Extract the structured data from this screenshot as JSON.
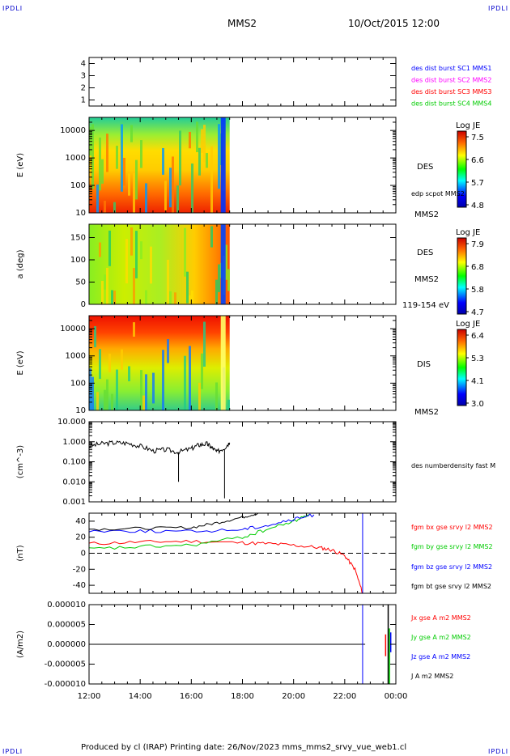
{
  "header": {
    "corner_label": "IPDLI",
    "spacecraft": "MMS2",
    "datetime": "10/Oct/2015 12:00"
  },
  "footer": {
    "text": "Produced by cl (IRAP)   Printing date: 26/Nov/2023   mms_mms2_srvy_vue_web1.cl"
  },
  "time_axis": {
    "labels": [
      "12:00",
      "14:00",
      "16:00",
      "18:00",
      "20:00",
      "22:00",
      "00:00"
    ]
  },
  "colors": {
    "blue": "#0000ff",
    "magenta": "#ff00ff",
    "red": "#ff0000",
    "green": "#00cc00",
    "black": "#000000"
  },
  "chart_data": [
    {
      "type": "line",
      "panel": "burst-coverage",
      "ylim": [
        0.5,
        4.5
      ],
      "yticks": [
        "1",
        "2",
        "3",
        "4"
      ],
      "legend": [
        {
          "label": "des dist burst SC1 MMS1",
          "color": "#0000ff"
        },
        {
          "label": "des dist burst SC2 MMS2",
          "color": "#ff00ff"
        },
        {
          "label": "des dist burst SC3 MMS3",
          "color": "#ff0000"
        },
        {
          "label": "des dist burst SC4 MMS4",
          "color": "#00cc00"
        }
      ]
    },
    {
      "type": "heatmap",
      "panel": "des-energy",
      "ylabel": "E (eV)",
      "yscale": "log",
      "ylim": [
        10,
        30000
      ],
      "yticks": [
        "10",
        "100",
        "1000",
        "10000"
      ],
      "data_span_hours": [
        0,
        5.5
      ],
      "labels": [
        "DES",
        "edp scpot MMS2",
        "MMS2"
      ],
      "colorbar": {
        "title": "Log JE",
        "ticks": [
          "7.5",
          "6.6",
          "5.7",
          "4.8"
        ]
      }
    },
    {
      "type": "heatmap",
      "panel": "des-pitch",
      "ylabel": "a (deg)",
      "ylim": [
        0,
        180
      ],
      "yticks": [
        "0",
        "50",
        "100",
        "150"
      ],
      "data_span_hours": [
        0,
        5.5
      ],
      "labels": [
        "DES",
        "MMS2",
        "119-154 eV"
      ],
      "colorbar": {
        "title": "Log JE",
        "ticks": [
          "7.9",
          "6.8",
          "5.8",
          "4.7"
        ]
      }
    },
    {
      "type": "heatmap",
      "panel": "dis-energy",
      "ylabel": "E (eV)",
      "yscale": "log",
      "ylim": [
        10,
        30000
      ],
      "yticks": [
        "10",
        "100",
        "1000",
        "10000"
      ],
      "data_span_hours": [
        0,
        5.5
      ],
      "labels": [
        "DIS",
        "MMS2"
      ],
      "colorbar": {
        "title": "Log JE",
        "ticks": [
          "6.4",
          "5.3",
          "4.1",
          "3.0"
        ]
      }
    },
    {
      "type": "line",
      "panel": "density",
      "ylabel": "(cm^-3)",
      "yscale": "log",
      "ylim": [
        0.001,
        10
      ],
      "yticks": [
        "10.000",
        "1.000",
        "0.100",
        "0.010",
        "0.001"
      ],
      "series": [
        {
          "name": "des numberdensity fast M",
          "color": "#000000",
          "x": [
            0,
            0.5,
            1.0,
            1.5,
            2.0,
            2.5,
            3.0,
            3.5,
            4.0,
            4.3,
            4.6,
            4.8,
            5.0,
            5.3,
            5.5
          ],
          "y": [
            0.6,
            0.8,
            0.9,
            0.85,
            0.6,
            0.35,
            0.4,
            0.3,
            0.45,
            0.7,
            0.8,
            0.5,
            0.3,
            0.5,
            0.9
          ]
        }
      ]
    },
    {
      "type": "line",
      "panel": "magnetic-field",
      "ylabel": "(nT)",
      "ylim": [
        -50,
        50
      ],
      "yticks": [
        "40",
        "20",
        "0",
        "-20",
        "-40"
      ],
      "series": [
        {
          "name": "fgm bx gse srvy l2 MMS2",
          "color": "#ff0000",
          "x": [
            0,
            2,
            4,
            6,
            7,
            8,
            9,
            9.5,
            10,
            10.4,
            10.7
          ],
          "y": [
            12,
            14,
            15,
            13,
            12,
            10,
            7,
            4,
            -3,
            -20,
            -50
          ]
        },
        {
          "name": "fgm by gse srvy l2 MMS2",
          "color": "#00cc00",
          "x": [
            0,
            2,
            4,
            6,
            7,
            8,
            8.6
          ],
          "y": [
            5,
            8,
            10,
            20,
            30,
            40,
            48
          ]
        },
        {
          "name": "fgm bz gse srvy l2 MMS2",
          "color": "#0000ff",
          "x": [
            0,
            2,
            4,
            6,
            7,
            8,
            8.8
          ],
          "y": [
            28,
            28,
            27,
            30,
            35,
            42,
            48
          ]
        },
        {
          "name": "fgm bt gse srvy l2 MMS2",
          "color": "#000000",
          "x": [
            0,
            2,
            4,
            5,
            6,
            6.6
          ],
          "y": [
            30,
            31,
            32,
            38,
            45,
            50
          ]
        }
      ]
    },
    {
      "type": "line",
      "panel": "current-density",
      "ylabel": "(A/m2)",
      "ylim": [
        -1e-05,
        1e-05
      ],
      "yticks": [
        "0.000010",
        "0.000005",
        "0.000000",
        "-0.000005",
        "-0.000010"
      ],
      "series": [
        {
          "name": "Jx gse A m2 MMS2",
          "color": "#ff0000"
        },
        {
          "name": "Jy gse A m2 MMS2",
          "color": "#00cc00"
        },
        {
          "name": "Jz gse A m2 MMS2",
          "color": "#0000ff"
        },
        {
          "name": "J A m2 MMS2",
          "color": "#000000"
        }
      ]
    }
  ]
}
